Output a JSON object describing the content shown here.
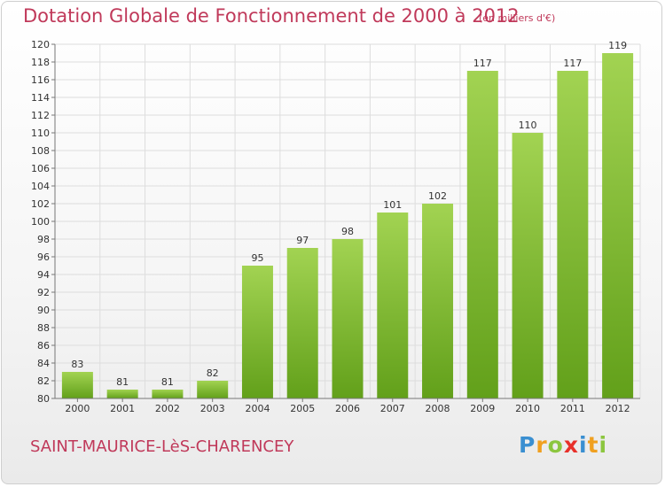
{
  "title": "Dotation Globale de Fonctionnement de 2000 à 2012",
  "subtitle": "(en milliers d'€)",
  "commune": "SAINT-MAURICE-LèS-CHARENCEY",
  "logo": {
    "letters": [
      {
        "char": "P",
        "color": "#3a8fd1"
      },
      {
        "char": "r",
        "color": "#f0a020"
      },
      {
        "char": "o",
        "color": "#8cc63f"
      },
      {
        "char": "x",
        "color": "#e8302a"
      },
      {
        "char": "i",
        "color": "#3a8fd1"
      },
      {
        "char": "t",
        "color": "#f0a020"
      },
      {
        "char": "i",
        "color": "#8cc63f"
      }
    ]
  },
  "colors": {
    "bar_top": "#a2d352",
    "bar_bottom": "#62a01a",
    "grid": "#dddddd",
    "axis": "#777777"
  },
  "chart_data": {
    "type": "bar",
    "categories": [
      "2000",
      "2001",
      "2002",
      "2003",
      "2004",
      "2005",
      "2006",
      "2007",
      "2008",
      "2009",
      "2010",
      "2011",
      "2012"
    ],
    "values": [
      83,
      81,
      81,
      82,
      95,
      97,
      98,
      101,
      102,
      117,
      110,
      117,
      119
    ],
    "title": "Dotation Globale de Fonctionnement de 2000 à 2012",
    "ylabel": "",
    "xlabel": "",
    "ylim": [
      80,
      120
    ],
    "yticks": [
      80,
      82,
      84,
      86,
      88,
      90,
      92,
      94,
      96,
      98,
      100,
      102,
      104,
      106,
      108,
      110,
      112,
      114,
      116,
      118,
      120
    ],
    "grid": true,
    "legend": "none"
  }
}
